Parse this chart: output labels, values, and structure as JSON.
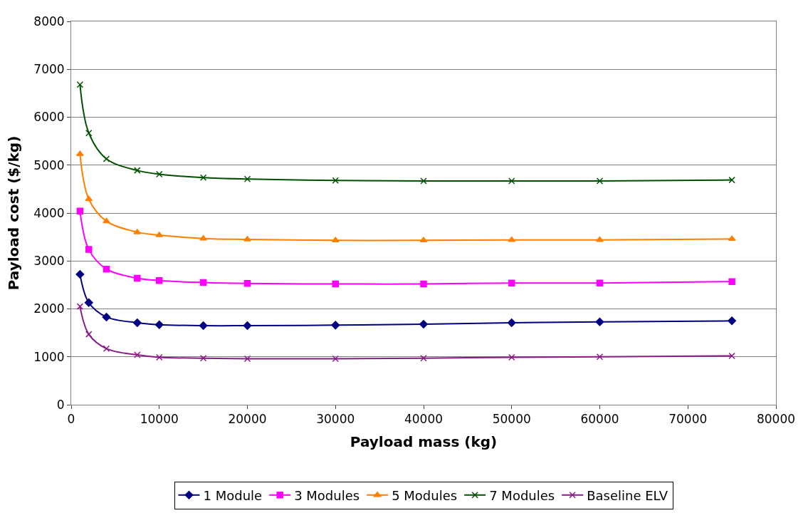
{
  "chart_data": {
    "type": "line",
    "xlabel": "Payload mass (kg)",
    "ylabel": "Payload cost ($/kg)",
    "x": [
      1000,
      2000,
      4000,
      7500,
      10000,
      15000,
      20000,
      30000,
      40000,
      50000,
      60000,
      75000
    ],
    "series": [
      {
        "name": "1 Module",
        "color": "#000080",
        "marker": "diamond",
        "values": [
          2720,
          2130,
          1830,
          1710,
          1670,
          1650,
          1650,
          1660,
          1680,
          1710,
          1730,
          1750
        ]
      },
      {
        "name": "3 Modules",
        "color": "#ff00ff",
        "marker": "square",
        "values": [
          4040,
          3240,
          2830,
          2640,
          2590,
          2550,
          2530,
          2520,
          2520,
          2540,
          2540,
          2570
        ]
      },
      {
        "name": "5 Modules",
        "color": "#ff7f00",
        "marker": "triangle",
        "values": [
          5230,
          4290,
          3830,
          3600,
          3540,
          3470,
          3450,
          3430,
          3430,
          3440,
          3440,
          3460
        ]
      },
      {
        "name": "7 Modules",
        "color": "#005000",
        "marker": "cross",
        "values": [
          6680,
          5670,
          5130,
          4890,
          4810,
          4740,
          4710,
          4680,
          4670,
          4670,
          4670,
          4690
        ]
      },
      {
        "name": "Baseline ELV",
        "color": "#8b1a89",
        "marker": "cross",
        "values": [
          2050,
          1470,
          1170,
          1040,
          990,
          970,
          960,
          960,
          970,
          990,
          1000,
          1020
        ]
      }
    ],
    "xlim": [
      0,
      80000
    ],
    "xticks": [
      0,
      10000,
      20000,
      30000,
      40000,
      50000,
      60000,
      70000,
      80000
    ],
    "ylim": [
      0,
      8000
    ],
    "yticks": [
      0,
      1000,
      2000,
      3000,
      4000,
      5000,
      6000,
      7000,
      8000
    ],
    "grid": "y",
    "legend": "bottom"
  }
}
